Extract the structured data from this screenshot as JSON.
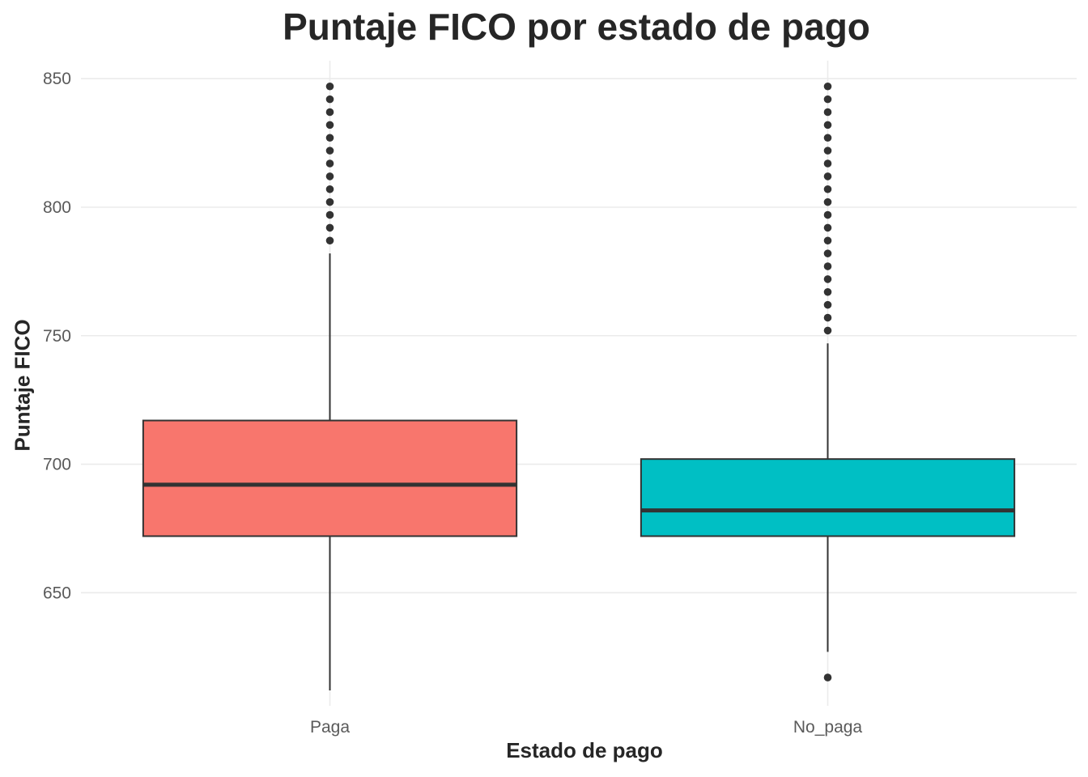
{
  "chart_data": {
    "type": "boxplot",
    "title": "Puntaje FICO por estado de pago",
    "xlabel": "Estado de pago",
    "ylabel": "Puntaje FICO",
    "categories": [
      "Paga",
      "No_paga"
    ],
    "ylim": [
      606,
      857
    ],
    "yticks": [
      650,
      700,
      750,
      800,
      850
    ],
    "grid": true,
    "legend": "none",
    "series": [
      {
        "category": "Paga",
        "color": "#F8766D",
        "whisker_low": 612,
        "q1": 672,
        "median": 692,
        "q3": 717,
        "whisker_high": 782,
        "outliers": [
          787,
          792,
          797,
          802,
          807,
          812,
          817,
          822,
          827,
          832,
          837,
          842,
          847
        ]
      },
      {
        "category": "No_paga",
        "color": "#00BFC4",
        "whisker_low": 627,
        "q1": 672,
        "median": 682,
        "q3": 702,
        "whisker_high": 747,
        "outliers": [
          617,
          752,
          757,
          762,
          767,
          772,
          777,
          782,
          787,
          792,
          797,
          802,
          807,
          812,
          817,
          822,
          827,
          832,
          837,
          842,
          847
        ]
      }
    ]
  }
}
